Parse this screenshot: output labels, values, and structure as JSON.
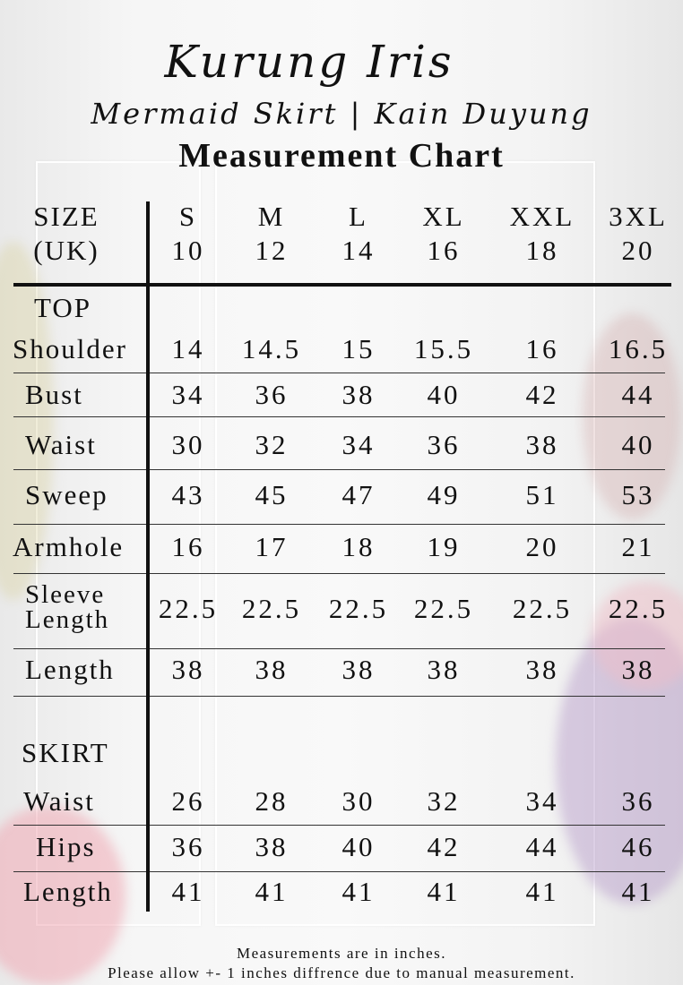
{
  "brand": "Kurung Iris",
  "subtitle": "Mermaid Skirt  |  Kain Duyung",
  "heading": "Measurement Chart",
  "size_label": [
    "SIZE",
    "(UK)"
  ],
  "sizes": [
    {
      "letter": "S",
      "uk": "10"
    },
    {
      "letter": "M",
      "uk": "12"
    },
    {
      "letter": "L",
      "uk": "14"
    },
    {
      "letter": "XL",
      "uk": "16"
    },
    {
      "letter": "XXL",
      "uk": "18"
    },
    {
      "letter": "3XL",
      "uk": "20"
    }
  ],
  "top": {
    "label": "TOP",
    "rows": [
      {
        "label": "Shoulder",
        "values": [
          "14",
          "14.5",
          "15",
          "15.5",
          "16",
          "16.5"
        ]
      },
      {
        "label": "Bust",
        "values": [
          "34",
          "36",
          "38",
          "40",
          "42",
          "44"
        ]
      },
      {
        "label": "Waist",
        "values": [
          "30",
          "32",
          "34",
          "36",
          "38",
          "40"
        ]
      },
      {
        "label": "Sweep",
        "values": [
          "43",
          "45",
          "47",
          "49",
          "51",
          "53"
        ]
      },
      {
        "label": "Armhole",
        "values": [
          "16",
          "17",
          "18",
          "19",
          "20",
          "21"
        ]
      },
      {
        "label": "Sleeve Length",
        "values": [
          "22.5",
          "22.5",
          "22.5",
          "22.5",
          "22.5",
          "22.5"
        ]
      },
      {
        "label": "Length",
        "values": [
          "38",
          "38",
          "38",
          "38",
          "38",
          "38"
        ]
      }
    ]
  },
  "skirt": {
    "label": "SKIRT",
    "rows": [
      {
        "label": "Waist",
        "values": [
          "26",
          "28",
          "30",
          "32",
          "34",
          "36"
        ]
      },
      {
        "label": "Hips",
        "values": [
          "36",
          "38",
          "40",
          "42",
          "44",
          "46"
        ]
      },
      {
        "label": "Length",
        "values": [
          "41",
          "41",
          "41",
          "41",
          "41",
          "41"
        ]
      }
    ]
  },
  "footer": [
    "Measurements are in inches.",
    "Please allow +- 1 inches diffrence due to manual measurement."
  ]
}
